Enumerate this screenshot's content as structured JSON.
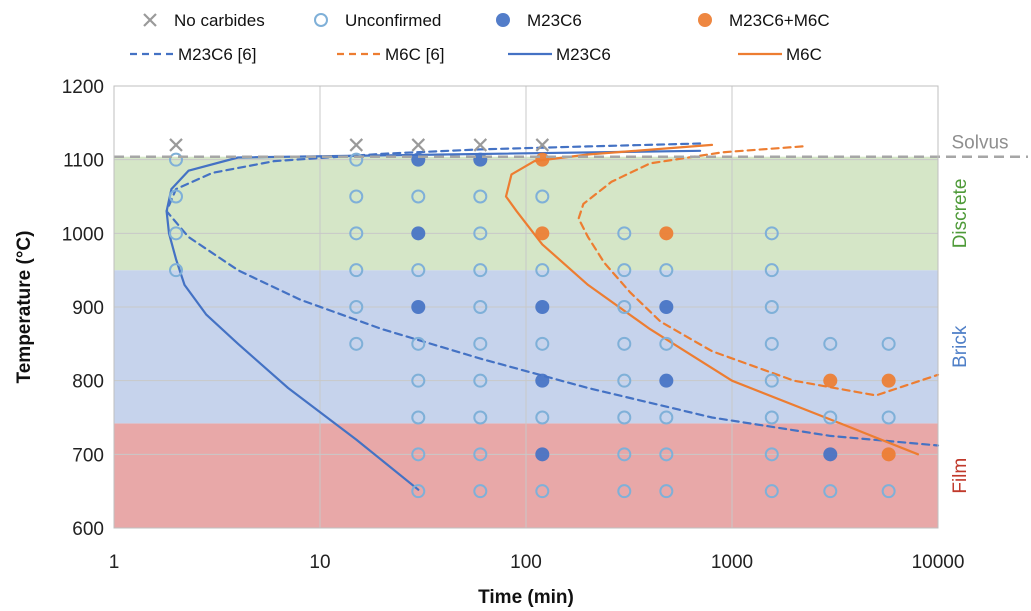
{
  "chart_data": {
    "type": "scatter",
    "xlabel": "Time (min)",
    "ylabel": "Temperature (°C)",
    "xscale": "log",
    "xlim": [
      1,
      10000
    ],
    "ylim": [
      600,
      1200
    ],
    "x_ticks": [
      "1",
      "10",
      "100",
      "1000",
      "10000"
    ],
    "y_ticks": [
      "600",
      "700",
      "800",
      "900",
      "1000",
      "1100",
      "1200"
    ],
    "grid": true,
    "legend_position": "top",
    "regions": [
      {
        "label": "Film",
        "y_range": [
          600,
          742
        ],
        "color": "#e8a8a8",
        "label_color": "#c0392b"
      },
      {
        "label": "Brick",
        "y_range": [
          742,
          950
        ],
        "color": "#c6d3ec",
        "label_color": "#4f7fc7"
      },
      {
        "label": "Discrete",
        "y_range": [
          950,
          1104
        ],
        "color": "#d5e6c7",
        "label_color": "#4e9a38"
      }
    ],
    "reference_line": {
      "label": "Solvus",
      "y": 1104,
      "color": "#a6a6a6"
    },
    "point_series": [
      {
        "name": "No carbides",
        "marker": "x",
        "color": "#9a9a9a",
        "points": [
          [
            2,
            1120
          ],
          [
            15,
            1120
          ],
          [
            30,
            1120
          ],
          [
            60,
            1120
          ],
          [
            120,
            1120
          ]
        ]
      },
      {
        "name": "Unconfirmed",
        "marker": "open-circle",
        "color": "#7fb0d8",
        "points": [
          [
            2,
            1100
          ],
          [
            2,
            1050
          ],
          [
            2,
            1000
          ],
          [
            2,
            950
          ],
          [
            15,
            1100
          ],
          [
            15,
            1050
          ],
          [
            15,
            1000
          ],
          [
            15,
            950
          ],
          [
            15,
            900
          ],
          [
            15,
            850
          ],
          [
            30,
            1050
          ],
          [
            30,
            950
          ],
          [
            30,
            850
          ],
          [
            30,
            800
          ],
          [
            30,
            750
          ],
          [
            30,
            700
          ],
          [
            30,
            650
          ],
          [
            60,
            1050
          ],
          [
            60,
            1000
          ],
          [
            60,
            950
          ],
          [
            60,
            900
          ],
          [
            60,
            850
          ],
          [
            60,
            800
          ],
          [
            60,
            750
          ],
          [
            60,
            700
          ],
          [
            60,
            650
          ],
          [
            120,
            1050
          ],
          [
            120,
            950
          ],
          [
            120,
            850
          ],
          [
            120,
            750
          ],
          [
            120,
            650
          ],
          [
            300,
            1000
          ],
          [
            300,
            950
          ],
          [
            300,
            900
          ],
          [
            300,
            850
          ],
          [
            300,
            800
          ],
          [
            300,
            750
          ],
          [
            300,
            700
          ],
          [
            300,
            650
          ],
          [
            480,
            950
          ],
          [
            480,
            850
          ],
          [
            480,
            750
          ],
          [
            480,
            700
          ],
          [
            480,
            650
          ],
          [
            1560,
            1000
          ],
          [
            1560,
            950
          ],
          [
            1560,
            900
          ],
          [
            1560,
            850
          ],
          [
            1560,
            800
          ],
          [
            1560,
            750
          ],
          [
            1560,
            700
          ],
          [
            1560,
            650
          ],
          [
            3000,
            850
          ],
          [
            3000,
            750
          ],
          [
            3000,
            650
          ],
          [
            5760,
            850
          ],
          [
            5760,
            750
          ],
          [
            5760,
            650
          ]
        ]
      },
      {
        "name": "M23C6",
        "marker": "filled-circle",
        "color": "#4472c4",
        "points": [
          [
            30,
            1100
          ],
          [
            60,
            1100
          ],
          [
            30,
            1000
          ],
          [
            30,
            900
          ],
          [
            120,
            900
          ],
          [
            480,
            900
          ],
          [
            120,
            800
          ],
          [
            480,
            800
          ],
          [
            120,
            700
          ],
          [
            3000,
            700
          ]
        ]
      },
      {
        "name": "M23C6+M6C",
        "marker": "filled-circle",
        "color": "#ed7d31",
        "points": [
          [
            120,
            1100
          ],
          [
            120,
            1000
          ],
          [
            480,
            1000
          ],
          [
            3000,
            800
          ],
          [
            5760,
            800
          ],
          [
            5760,
            700
          ]
        ]
      }
    ],
    "line_series": [
      {
        "name": "M23C6 [6]",
        "style": "dashed",
        "color": "#4472c4",
        "points": [
          [
            700,
            1122
          ],
          [
            200,
            1118
          ],
          [
            60,
            1114
          ],
          [
            20,
            1108
          ],
          [
            6,
            1098
          ],
          [
            3,
            1082
          ],
          [
            2,
            1060
          ],
          [
            1.8,
            1030
          ],
          [
            2.3,
            995
          ],
          [
            4,
            950
          ],
          [
            8,
            910
          ],
          [
            20,
            870
          ],
          [
            60,
            830
          ],
          [
            200,
            790
          ],
          [
            800,
            750
          ],
          [
            3000,
            725
          ],
          [
            10000,
            712
          ]
        ]
      },
      {
        "name": "M6C [6]",
        "style": "dashed",
        "color": "#ed7d31",
        "points": [
          [
            2200,
            1118
          ],
          [
            900,
            1110
          ],
          [
            400,
            1095
          ],
          [
            260,
            1070
          ],
          [
            190,
            1040
          ],
          [
            180,
            1020
          ],
          [
            200,
            995
          ],
          [
            240,
            960
          ],
          [
            320,
            920
          ],
          [
            450,
            880
          ],
          [
            800,
            840
          ],
          [
            2000,
            800
          ],
          [
            5000,
            780
          ],
          [
            10000,
            808
          ]
        ]
      },
      {
        "name": "M23C6",
        "style": "solid",
        "color": "#4472c4",
        "points": [
          [
            30,
            652
          ],
          [
            15,
            720
          ],
          [
            7,
            790
          ],
          [
            4,
            850
          ],
          [
            2.8,
            890
          ],
          [
            2.2,
            930
          ],
          [
            2,
            965
          ],
          [
            1.85,
            1000
          ],
          [
            1.8,
            1030
          ],
          [
            1.9,
            1060
          ],
          [
            2.3,
            1085
          ],
          [
            4,
            1103
          ],
          [
            40,
            1107
          ],
          [
            700,
            1112
          ]
        ]
      },
      {
        "name": "M6C",
        "style": "solid",
        "color": "#ed7d31",
        "points": [
          [
            8000,
            700
          ],
          [
            3500,
            740
          ],
          [
            1000,
            800
          ],
          [
            400,
            870
          ],
          [
            200,
            930
          ],
          [
            120,
            985
          ],
          [
            90,
            1030
          ],
          [
            80,
            1050
          ],
          [
            85,
            1080
          ],
          [
            110,
            1098
          ],
          [
            200,
            1107
          ],
          [
            800,
            1120
          ]
        ]
      }
    ],
    "legend": [
      {
        "label": "No carbides",
        "type": "x",
        "color": "#9a9a9a"
      },
      {
        "label": "Unconfirmed",
        "type": "open-circle",
        "color": "#7fb0d8"
      },
      {
        "label": "M23C6",
        "type": "filled-circle",
        "color": "#4472c4"
      },
      {
        "label": "M23C6+M6C",
        "type": "filled-circle",
        "color": "#ed7d31"
      },
      {
        "label": "M23C6 [6]",
        "type": "dashed",
        "color": "#4472c4"
      },
      {
        "label": "M6C [6]",
        "type": "dashed",
        "color": "#ed7d31"
      },
      {
        "label": "M23C6",
        "type": "solid",
        "color": "#4472c4"
      },
      {
        "label": "M6C",
        "type": "solid",
        "color": "#ed7d31"
      }
    ]
  }
}
